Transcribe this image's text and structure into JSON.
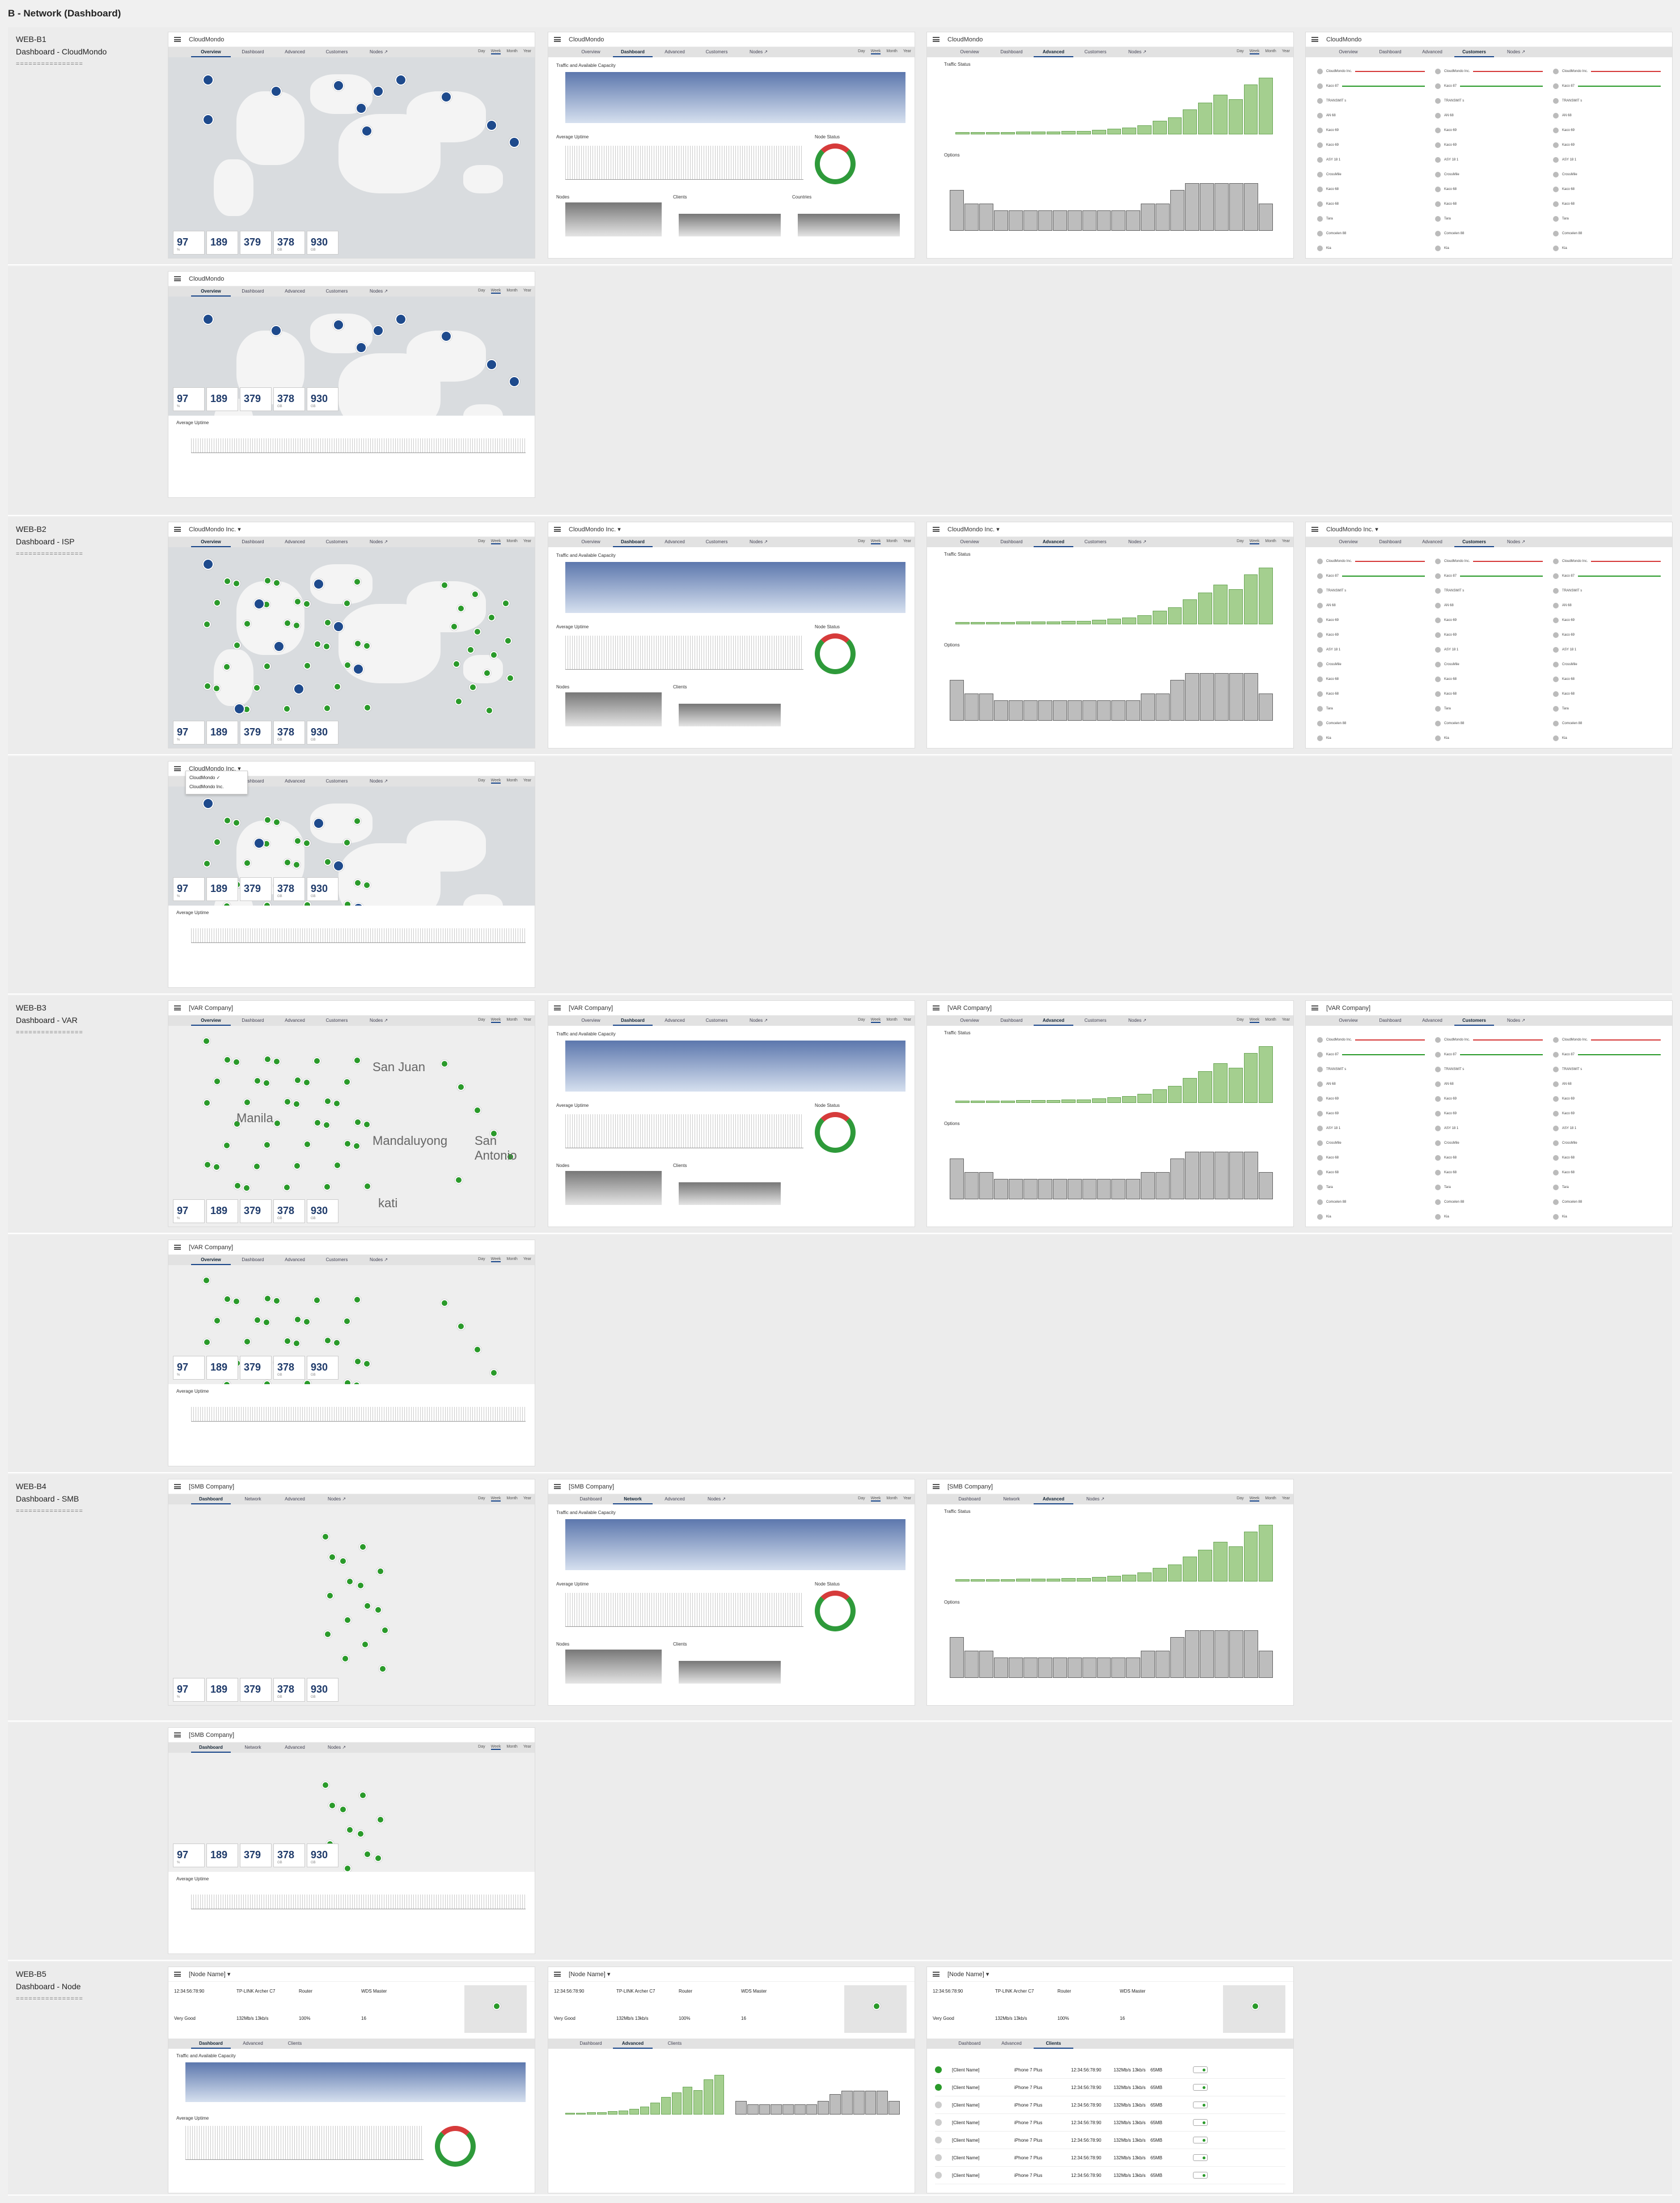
{
  "page_title": "B - Network (Dashboard)",
  "sections": [
    {
      "id": "WEB-B1",
      "subtitle": "Dashboard - CloudMondo",
      "sep": "================"
    },
    {
      "id": "WEB-B2",
      "subtitle": "Dashboard - ISP",
      "sep": "================"
    },
    {
      "id": "WEB-B3",
      "subtitle": "Dashboard - VAR",
      "sep": "================"
    },
    {
      "id": "WEB-B4",
      "subtitle": "Dashboard - SMB",
      "sep": "================"
    },
    {
      "id": "WEB-B5",
      "subtitle": "Dashboard - Node",
      "sep": "================"
    }
  ],
  "app_names": {
    "cloud": "CloudMondo",
    "isp": "CloudMondo Inc. ▾",
    "var": "[VAR Company]",
    "smb": "[SMB Company]",
    "node": "[Node Name] ▾"
  },
  "tabs_full": [
    "Overview",
    "Dashboard",
    "Advanced",
    "Customers",
    "Nodes ↗"
  ],
  "tabs_smb": [
    "Dashboard",
    "Network",
    "Advanced",
    "Nodes ↗"
  ],
  "tabs_node": [
    "Dashboard",
    "Advanced",
    "Clients"
  ],
  "ranges": [
    "Day",
    "Week",
    "Month",
    "Year"
  ],
  "ranges_alt": [
    "Recently",
    "Day",
    "Week",
    "Month",
    "Year"
  ],
  "stats": {
    "s1": "97",
    "s1_unit": "%",
    "s2": "189",
    "s3": "379",
    "s4": "378",
    "s4_unit": "GB",
    "s5": "930",
    "s5_unit": "GB"
  },
  "labels": {
    "traffic": "Traffic and Available Capacity",
    "uptime": "Average Uptime",
    "nodes": "Nodes",
    "clients": "Clients",
    "countries": "Countries",
    "traffic_status": "Traffic Status",
    "options": "Options",
    "node_status": "Node Status"
  },
  "map_text": {
    "san_juan": "San Juan",
    "manila": "Manila",
    "mandaluyong": "Mandaluyong",
    "kati": "kati",
    "san_antonio": "San Antonio"
  },
  "dropdown": {
    "item1": "CloudMondo ✓",
    "item2": "CloudMondo Inc."
  },
  "node_info": {
    "mac": "12:34:56:78:90",
    "model": "TP-LINK Archer C7",
    "role": "Router",
    "mode": "WDS Master",
    "quality": "Very Good",
    "speed": "132Mb/s  13kb/s",
    "uptime": "100%",
    "count": "16"
  },
  "clients": {
    "name": "[Client Name]",
    "device": "iPhone 7 Plus",
    "mac": "12:34:56:78:90",
    "speed": "132Mb/s  13kb/s",
    "data": "65MB"
  },
  "customers": [
    "CloudMondo Inc.",
    "Kaco 87",
    "TRANSMIT s",
    "AN 68",
    "Kaco 69",
    "Kaco 69",
    "ASY 18 1",
    "CrossMile",
    "Kaco 68",
    "Kaco 68",
    "Tara",
    "Comcelen 88",
    "Kia"
  ],
  "colors": {
    "accent": "#1e4a8c",
    "green": "#2a9a2a",
    "red": "#d63b3b"
  }
}
